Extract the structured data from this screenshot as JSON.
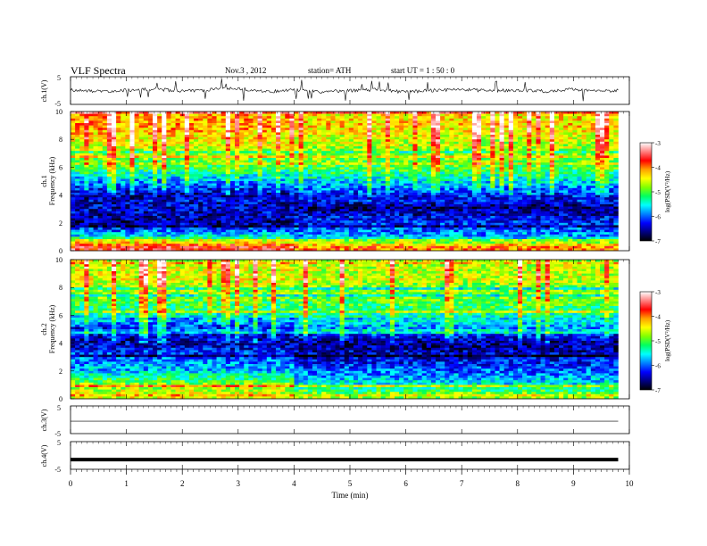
{
  "header": {
    "title": "VLF  Spectra",
    "date": "Nov.3  , 2012",
    "station": "station= ATH",
    "start": "start  UT  =   1 : 50 : 0"
  },
  "colorbar": {
    "label": "log(PSD(V²/Hz)",
    "ticks": [
      "-3",
      "-4",
      "-5",
      "-6",
      "-7"
    ],
    "colors": [
      "#ffffff",
      "#ff8080",
      "#ff0000",
      "#ffa000",
      "#ffff00",
      "#80ff00",
      "#00ff60",
      "#00ffff",
      "#0080ff",
      "#0000ff",
      "#000080",
      "#000000"
    ]
  },
  "chart_data": [
    {
      "type": "line",
      "panel": "ch1",
      "ylabel": "ch.1(V)",
      "ylim": [
        -5,
        5
      ],
      "yticks": [
        "5",
        "-5"
      ],
      "x": [
        0,
        0.5,
        1,
        1.5,
        2,
        2.5,
        3,
        3.5,
        4,
        4.5,
        5,
        5.5,
        6,
        6.5,
        7,
        7.5,
        8,
        8.5,
        9,
        9.5,
        9.8
      ],
      "values": [
        0.2,
        -0.3,
        0.1,
        0.5,
        -0.2,
        0.3,
        0.8,
        -0.4,
        0.2,
        -0.5,
        0.0,
        0.3,
        -0.6,
        0.1,
        0.4,
        -0.2,
        0.2,
        -0.3,
        0.5,
        -0.2,
        0.1
      ]
    },
    {
      "type": "heatmap",
      "panel": "ch1-spectrogram",
      "ylabel": "Frequency  (kHz)",
      "channel": "ch.1",
      "ylim": [
        0,
        10
      ],
      "yticks": [
        "10",
        "8",
        "6",
        "4",
        "2",
        "0"
      ],
      "zlim": [
        -7,
        -3
      ],
      "description_bands_kHz": [
        0,
        10
      ],
      "profile_before_4min": {
        "freq_kHz": [
          0.3,
          1,
          2,
          3,
          4,
          5,
          6,
          7,
          8,
          9,
          10
        ],
        "log_psd": [
          -3.6,
          -5.5,
          -6.6,
          -6.4,
          -6.5,
          -5.8,
          -5.1,
          -4.7,
          -4.4,
          -4.1,
          -4.2
        ]
      },
      "profile_after_4min": {
        "freq_kHz": [
          0.3,
          1,
          2,
          3,
          4,
          5,
          6,
          7,
          8,
          9,
          10
        ],
        "log_psd": [
          -4.0,
          -5.8,
          -6.2,
          -6.6,
          -6.2,
          -5.6,
          -5.0,
          -4.8,
          -4.6,
          -4.3,
          -4.4
        ]
      }
    },
    {
      "type": "heatmap",
      "panel": "ch2-spectrogram",
      "ylabel": "Frequency  (kHz)",
      "channel": "ch.2",
      "ylim": [
        0,
        10
      ],
      "yticks": [
        "10",
        "8",
        "6",
        "4",
        "2",
        "0"
      ],
      "zlim": [
        -7,
        -3
      ],
      "profile_before_4min": {
        "freq_kHz": [
          0.3,
          1,
          2,
          3,
          4,
          5,
          6,
          7,
          8,
          9,
          10
        ],
        "log_psd": [
          -4.5,
          -4.8,
          -5.7,
          -6.0,
          -6.5,
          -6.3,
          -5.4,
          -5.0,
          -4.7,
          -4.5,
          -4.6
        ]
      },
      "profile_after_4min": {
        "freq_kHz": [
          0.3,
          1,
          2,
          3,
          4,
          5,
          6,
          7,
          8,
          9,
          10
        ],
        "log_psd": [
          -4.8,
          -5.5,
          -6.0,
          -6.4,
          -6.6,
          -5.9,
          -5.3,
          -5.0,
          -4.8,
          -4.6,
          -4.7
        ]
      }
    },
    {
      "type": "line",
      "panel": "ch3",
      "ylabel": "ch.3(V)",
      "ylim": [
        -5,
        5
      ],
      "yticks": [
        "5",
        "-5"
      ],
      "x": [
        0,
        9.8
      ],
      "values": [
        -0.5,
        -0.5
      ]
    },
    {
      "type": "line",
      "panel": "ch4",
      "ylabel": "ch.4(V)",
      "ylim": [
        -5,
        5
      ],
      "yticks": [
        "5",
        "-5"
      ],
      "x": [
        0,
        9.8
      ],
      "values": [
        -1.5,
        -1.5
      ]
    }
  ],
  "xaxis": {
    "label": "Time  (min)",
    "ticks": [
      "0",
      "1",
      "2",
      "3",
      "4",
      "5",
      "6",
      "7",
      "8",
      "9",
      "10"
    ],
    "xlim": [
      0,
      10
    ],
    "data_end": 9.8
  }
}
